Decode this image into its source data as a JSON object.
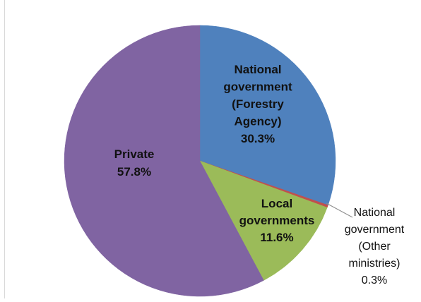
{
  "chart_data": {
    "type": "pie",
    "slices": [
      {
        "label": [
          "National",
          "government",
          "(Forestry",
          "Agency)"
        ],
        "value": 30.3,
        "value_label": "30.3%",
        "color": "#4f81bd"
      },
      {
        "label": [
          "National",
          "government",
          "(Other",
          "ministries)"
        ],
        "value": 0.3,
        "value_label": "0.3%",
        "color": "#c0504d"
      },
      {
        "label": [
          "Local",
          "governments"
        ],
        "value": 11.6,
        "value_label": "11.6%",
        "color": "#9bbb59"
      },
      {
        "label": [
          "Private"
        ],
        "value": 57.8,
        "value_label": "57.8%",
        "color": "#8064a2"
      }
    ],
    "start": "12 o'clock",
    "direction": "clockwise",
    "legend": "none"
  }
}
